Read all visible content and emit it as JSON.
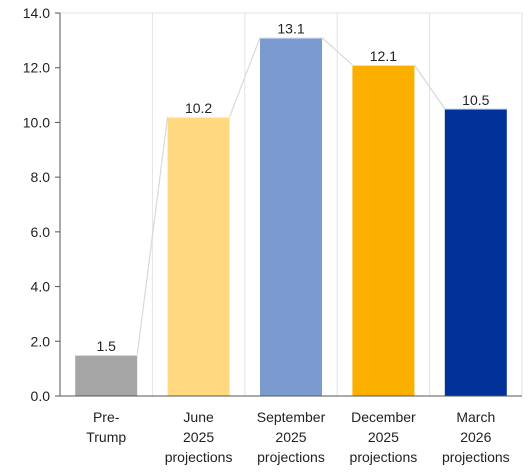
{
  "chart_data": {
    "type": "bar",
    "categories": [
      [
        "Pre-",
        "Trump"
      ],
      [
        "June",
        "2025",
        "projections"
      ],
      [
        "September",
        "2025",
        "projections"
      ],
      [
        "December",
        "2025",
        "projections"
      ],
      [
        "March",
        "2026",
        "projections"
      ]
    ],
    "values": [
      1.5,
      10.2,
      13.1,
      12.1,
      10.5
    ],
    "data_labels": [
      "1.5",
      "10.2",
      "13.1",
      "12.1",
      "10.5"
    ],
    "bar_colors": [
      "#a6a6a6",
      "#ffd880",
      "#7b9bd0",
      "#fbb000",
      "#003299"
    ],
    "connector_color": "#d9d9d9",
    "ylim": [
      0,
      14
    ],
    "yticks": [
      "0.0",
      "2.0",
      "4.0",
      "6.0",
      "8.0",
      "10.0",
      "12.0",
      "14.0"
    ],
    "grid": "vertical",
    "title": "",
    "xlabel": "",
    "ylabel": ""
  }
}
